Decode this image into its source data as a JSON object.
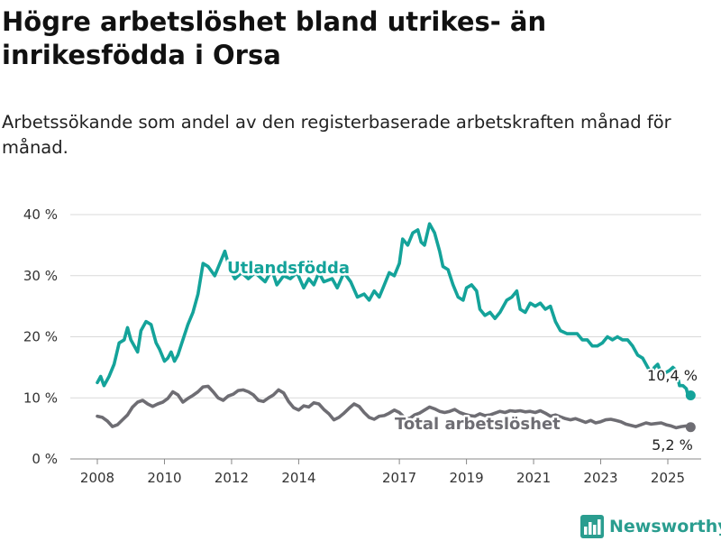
{
  "colors": {
    "foreign_born": "#14a39a",
    "total": "#6e6d73",
    "grid": "#d9d9d9",
    "brand": "#2a9d8f"
  },
  "title": "Högre arbetslöshet bland utrikes- än inrikesfödda i Orsa",
  "subtitle": "Arbetssökande som andel av den registerbaserade arbetskraften månad för månad.",
  "brand": {
    "name": "Newsworthy",
    "icon": "bar-chart-logo-icon"
  },
  "chart_data": {
    "type": "line",
    "x_unit": "year",
    "xlim": [
      2007.5,
      2025.75
    ],
    "ylim": [
      0,
      40
    ],
    "y_ticks": [
      0,
      10,
      20,
      30,
      40
    ],
    "y_tick_labels": [
      "0 %",
      "10 %",
      "20 %",
      "30 %",
      "40 %"
    ],
    "x_ticks": [
      2008,
      2010,
      2012,
      2014,
      2017,
      2019,
      2021,
      2023,
      2025
    ],
    "x_tick_labels": [
      "2008",
      "2010",
      "2012",
      "2014",
      "2017",
      "2019",
      "2021",
      "2023",
      "2025"
    ],
    "grid": true,
    "series": [
      {
        "name": "Utlandsfödda",
        "color": "#14a39a",
        "end_label": "10,4 %",
        "points": [
          [
            2008.0,
            12.5
          ],
          [
            2008.1,
            13.5
          ],
          [
            2008.2,
            12.0
          ],
          [
            2008.35,
            13.5
          ],
          [
            2008.5,
            15.5
          ],
          [
            2008.65,
            19.0
          ],
          [
            2008.8,
            19.5
          ],
          [
            2008.9,
            21.5
          ],
          [
            2009.0,
            19.5
          ],
          [
            2009.2,
            17.5
          ],
          [
            2009.3,
            21.0
          ],
          [
            2009.45,
            22.5
          ],
          [
            2009.6,
            22.0
          ],
          [
            2009.75,
            19.0
          ],
          [
            2009.85,
            18.0
          ],
          [
            2010.0,
            16.0
          ],
          [
            2010.1,
            16.5
          ],
          [
            2010.2,
            17.5
          ],
          [
            2010.3,
            16.0
          ],
          [
            2010.4,
            17.0
          ],
          [
            2010.55,
            19.5
          ],
          [
            2010.7,
            22.0
          ],
          [
            2010.85,
            24.0
          ],
          [
            2011.0,
            27.0
          ],
          [
            2011.15,
            32.0
          ],
          [
            2011.3,
            31.5
          ],
          [
            2011.5,
            30.0
          ],
          [
            2011.65,
            32.0
          ],
          [
            2011.8,
            34.0
          ],
          [
            2011.95,
            31.0
          ],
          [
            2012.1,
            29.5
          ],
          [
            2012.3,
            30.5
          ],
          [
            2012.5,
            29.5
          ],
          [
            2012.7,
            30.5
          ],
          [
            2013.0,
            29.0
          ],
          [
            2013.2,
            31.0
          ],
          [
            2013.35,
            28.5
          ],
          [
            2013.55,
            30.0
          ],
          [
            2013.75,
            29.5
          ],
          [
            2013.95,
            30.5
          ],
          [
            2014.15,
            28.0
          ],
          [
            2014.3,
            29.5
          ],
          [
            2014.45,
            28.5
          ],
          [
            2014.6,
            30.5
          ],
          [
            2014.75,
            29.0
          ],
          [
            2015.0,
            29.5
          ],
          [
            2015.15,
            28.0
          ],
          [
            2015.35,
            30.5
          ],
          [
            2015.55,
            29.0
          ],
          [
            2015.75,
            26.5
          ],
          [
            2015.95,
            27.0
          ],
          [
            2016.1,
            26.0
          ],
          [
            2016.25,
            27.5
          ],
          [
            2016.4,
            26.5
          ],
          [
            2016.55,
            28.5
          ],
          [
            2016.7,
            30.5
          ],
          [
            2016.85,
            30.0
          ],
          [
            2017.0,
            32.0
          ],
          [
            2017.1,
            36.0
          ],
          [
            2017.25,
            35.0
          ],
          [
            2017.4,
            37.0
          ],
          [
            2017.55,
            37.5
          ],
          [
            2017.65,
            35.5
          ],
          [
            2017.75,
            35.0
          ],
          [
            2017.9,
            38.5
          ],
          [
            2018.05,
            37.0
          ],
          [
            2018.2,
            34.0
          ],
          [
            2018.3,
            31.5
          ],
          [
            2018.45,
            31.0
          ],
          [
            2018.6,
            28.5
          ],
          [
            2018.75,
            26.5
          ],
          [
            2018.9,
            26.0
          ],
          [
            2019.0,
            28.0
          ],
          [
            2019.15,
            28.5
          ],
          [
            2019.3,
            27.5
          ],
          [
            2019.4,
            24.5
          ],
          [
            2019.55,
            23.5
          ],
          [
            2019.7,
            24.0
          ],
          [
            2019.85,
            23.0
          ],
          [
            2020.0,
            24.0
          ],
          [
            2020.2,
            26.0
          ],
          [
            2020.35,
            26.5
          ],
          [
            2020.5,
            27.5
          ],
          [
            2020.6,
            24.5
          ],
          [
            2020.75,
            24.0
          ],
          [
            2020.9,
            25.5
          ],
          [
            2021.05,
            25.0
          ],
          [
            2021.2,
            25.5
          ],
          [
            2021.35,
            24.5
          ],
          [
            2021.5,
            25.0
          ],
          [
            2021.65,
            22.5
          ],
          [
            2021.8,
            21.0
          ],
          [
            2022.0,
            20.5
          ],
          [
            2022.15,
            20.5
          ],
          [
            2022.3,
            20.5
          ],
          [
            2022.45,
            19.5
          ],
          [
            2022.6,
            19.5
          ],
          [
            2022.75,
            18.5
          ],
          [
            2022.9,
            18.5
          ],
          [
            2023.05,
            19.0
          ],
          [
            2023.2,
            20.0
          ],
          [
            2023.35,
            19.5
          ],
          [
            2023.5,
            20.0
          ],
          [
            2023.65,
            19.5
          ],
          [
            2023.8,
            19.5
          ],
          [
            2023.95,
            18.5
          ],
          [
            2024.1,
            17.0
          ],
          [
            2024.25,
            16.5
          ],
          [
            2024.4,
            15.0
          ],
          [
            2024.5,
            14.0
          ],
          [
            2024.6,
            15.0
          ],
          [
            2024.7,
            15.5
          ],
          [
            2024.8,
            14.0
          ],
          [
            2024.9,
            14.0
          ],
          [
            2025.05,
            14.5
          ],
          [
            2025.15,
            15.0
          ],
          [
            2025.25,
            14.5
          ],
          [
            2025.35,
            12.0
          ],
          [
            2025.45,
            12.0
          ],
          [
            2025.55,
            11.5
          ],
          [
            2025.62,
            10.0
          ],
          [
            2025.68,
            10.4
          ]
        ]
      },
      {
        "name": "Total arbetslöshet",
        "color": "#6e6d73",
        "end_label": "5,2 %",
        "points": [
          [
            2008.0,
            7.0
          ],
          [
            2008.15,
            6.8
          ],
          [
            2008.3,
            6.2
          ],
          [
            2008.45,
            5.3
          ],
          [
            2008.6,
            5.6
          ],
          [
            2008.75,
            6.4
          ],
          [
            2008.9,
            7.2
          ],
          [
            2009.05,
            8.5
          ],
          [
            2009.2,
            9.3
          ],
          [
            2009.35,
            9.6
          ],
          [
            2009.5,
            9.0
          ],
          [
            2009.65,
            8.6
          ],
          [
            2009.8,
            9.0
          ],
          [
            2009.95,
            9.3
          ],
          [
            2010.1,
            9.9
          ],
          [
            2010.25,
            11.0
          ],
          [
            2010.4,
            10.5
          ],
          [
            2010.55,
            9.3
          ],
          [
            2010.7,
            9.9
          ],
          [
            2010.85,
            10.4
          ],
          [
            2011.0,
            11.0
          ],
          [
            2011.15,
            11.8
          ],
          [
            2011.3,
            11.9
          ],
          [
            2011.45,
            11.0
          ],
          [
            2011.6,
            10.0
          ],
          [
            2011.75,
            9.6
          ],
          [
            2011.9,
            10.3
          ],
          [
            2012.05,
            10.6
          ],
          [
            2012.2,
            11.2
          ],
          [
            2012.35,
            11.3
          ],
          [
            2012.5,
            11.0
          ],
          [
            2012.65,
            10.5
          ],
          [
            2012.8,
            9.6
          ],
          [
            2012.95,
            9.4
          ],
          [
            2013.1,
            10.0
          ],
          [
            2013.25,
            10.5
          ],
          [
            2013.4,
            11.3
          ],
          [
            2013.55,
            10.8
          ],
          [
            2013.7,
            9.4
          ],
          [
            2013.85,
            8.4
          ],
          [
            2014.0,
            8.0
          ],
          [
            2014.15,
            8.7
          ],
          [
            2014.3,
            8.5
          ],
          [
            2014.45,
            9.2
          ],
          [
            2014.6,
            9.0
          ],
          [
            2014.75,
            8.1
          ],
          [
            2014.9,
            7.4
          ],
          [
            2015.05,
            6.4
          ],
          [
            2015.2,
            6.8
          ],
          [
            2015.35,
            7.5
          ],
          [
            2015.5,
            8.3
          ],
          [
            2015.65,
            9.0
          ],
          [
            2015.8,
            8.6
          ],
          [
            2015.95,
            7.6
          ],
          [
            2016.1,
            6.8
          ],
          [
            2016.25,
            6.5
          ],
          [
            2016.4,
            7.0
          ],
          [
            2016.55,
            7.1
          ],
          [
            2016.7,
            7.5
          ],
          [
            2016.85,
            8.0
          ],
          [
            2017.0,
            7.6
          ],
          [
            2017.15,
            6.8
          ],
          [
            2017.3,
            6.6
          ],
          [
            2017.45,
            7.2
          ],
          [
            2017.6,
            7.5
          ],
          [
            2017.75,
            8.0
          ],
          [
            2017.9,
            8.5
          ],
          [
            2018.05,
            8.2
          ],
          [
            2018.2,
            7.8
          ],
          [
            2018.35,
            7.6
          ],
          [
            2018.5,
            7.8
          ],
          [
            2018.65,
            8.1
          ],
          [
            2018.8,
            7.6
          ],
          [
            2018.95,
            7.3
          ],
          [
            2019.1,
            7.1
          ],
          [
            2019.25,
            7.0
          ],
          [
            2019.4,
            7.4
          ],
          [
            2019.55,
            7.1
          ],
          [
            2019.7,
            7.2
          ],
          [
            2019.85,
            7.5
          ],
          [
            2020.0,
            7.8
          ],
          [
            2020.15,
            7.6
          ],
          [
            2020.3,
            7.9
          ],
          [
            2020.45,
            7.8
          ],
          [
            2020.6,
            7.9
          ],
          [
            2020.75,
            7.7
          ],
          [
            2020.9,
            7.8
          ],
          [
            2021.05,
            7.6
          ],
          [
            2021.2,
            7.9
          ],
          [
            2021.35,
            7.5
          ],
          [
            2021.5,
            7.0
          ],
          [
            2021.65,
            7.2
          ],
          [
            2021.8,
            6.9
          ],
          [
            2021.95,
            6.6
          ],
          [
            2022.1,
            6.4
          ],
          [
            2022.25,
            6.6
          ],
          [
            2022.4,
            6.3
          ],
          [
            2022.55,
            6.0
          ],
          [
            2022.7,
            6.3
          ],
          [
            2022.85,
            5.9
          ],
          [
            2023.0,
            6.1
          ],
          [
            2023.15,
            6.4
          ],
          [
            2023.3,
            6.5
          ],
          [
            2023.45,
            6.3
          ],
          [
            2023.6,
            6.1
          ],
          [
            2023.75,
            5.7
          ],
          [
            2023.9,
            5.5
          ],
          [
            2024.05,
            5.3
          ],
          [
            2024.2,
            5.6
          ],
          [
            2024.35,
            5.9
          ],
          [
            2024.5,
            5.7
          ],
          [
            2024.65,
            5.8
          ],
          [
            2024.8,
            5.9
          ],
          [
            2024.95,
            5.6
          ],
          [
            2025.1,
            5.4
          ],
          [
            2025.25,
            5.1
          ],
          [
            2025.4,
            5.3
          ],
          [
            2025.55,
            5.4
          ],
          [
            2025.68,
            5.2
          ]
        ]
      }
    ]
  }
}
